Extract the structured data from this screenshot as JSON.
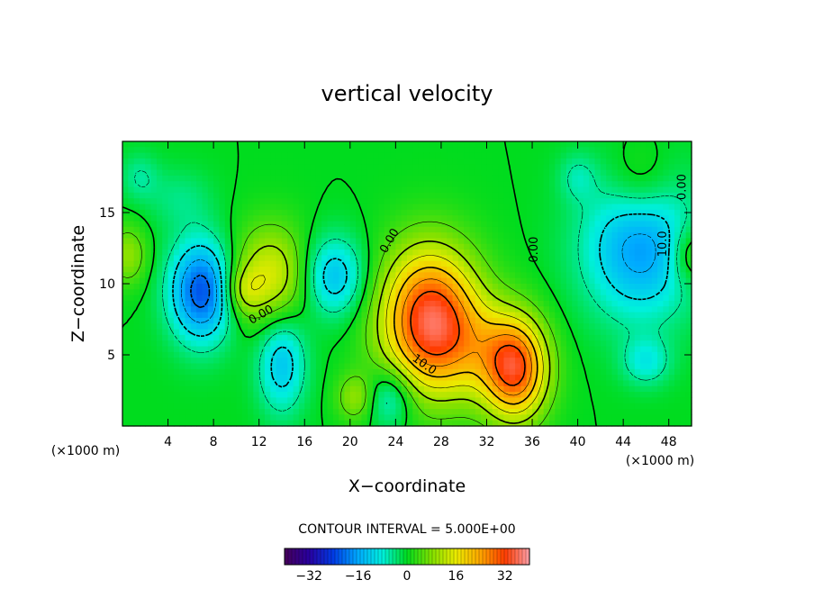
{
  "chart_data": {
    "type": "heatmap",
    "title": "vertical velocity",
    "xlabel": "X−coordinate",
    "ylabel": "Z−coordinate",
    "x_unit_left": "(×1000 m)",
    "x_unit_right": "(×1000 m)",
    "xlim": [
      0,
      50
    ],
    "ylim": [
      0,
      20
    ],
    "x_ticks": [
      4,
      8,
      12,
      16,
      20,
      24,
      28,
      32,
      36,
      40,
      44,
      48
    ],
    "y_ticks": [
      5,
      10,
      15
    ],
    "contour_interval_label": "CONTOUR INTERVAL = 5.000E+00",
    "colorbar": {
      "range": [
        -40,
        40
      ],
      "ticks": [
        -32,
        -16,
        0,
        16,
        32
      ],
      "tick_labels": [
        "−32",
        "−16",
        "0",
        "16",
        "32"
      ]
    },
    "contour_labels": [
      {
        "text": "0.00",
        "x": 23.5,
        "z": 13.0,
        "angle": -60
      },
      {
        "text": "0.00",
        "x": 12.2,
        "z": 7.8,
        "angle": -30
      },
      {
        "text": "10.0",
        "x": 26.5,
        "z": 4.3,
        "angle": 35
      },
      {
        "text": "0.00",
        "x": 36.2,
        "z": 12.4,
        "angle": -90
      },
      {
        "text": "10.0",
        "x": 47.5,
        "z": 12.8,
        "angle": -90
      },
      {
        "text": "0.00",
        "x": 49.2,
        "z": 16.8,
        "angle": -90
      }
    ],
    "field_features": [
      {
        "x": 27.0,
        "z": 7.5,
        "sx": 3.0,
        "sz": 3.5,
        "amp": 34
      },
      {
        "x": 34.5,
        "z": 4.0,
        "sx": 2.0,
        "sz": 2.5,
        "amp": 30
      },
      {
        "x": 31.0,
        "z": 5.5,
        "sx": 3.0,
        "sz": 2.5,
        "amp": 8
      },
      {
        "x": 13.0,
        "z": 10.5,
        "sx": 2.5,
        "sz": 2.5,
        "amp": 15
      },
      {
        "x": 10.5,
        "z": 9.5,
        "sx": 1.2,
        "sz": 1.2,
        "amp": 8
      },
      {
        "x": 7.0,
        "z": 9.5,
        "sx": 2.0,
        "sz": 2.5,
        "amp": -23
      },
      {
        "x": 18.5,
        "z": 10.5,
        "sx": 2.0,
        "sz": 2.0,
        "amp": -14
      },
      {
        "x": 14.0,
        "z": 4.5,
        "sx": 1.5,
        "sz": 2.5,
        "amp": -13
      },
      {
        "x": 23.5,
        "z": 2.0,
        "sx": 1.5,
        "sz": 1.5,
        "amp": -10
      },
      {
        "x": 20.5,
        "z": 2.0,
        "sx": 1.2,
        "sz": 1.2,
        "amp": 9
      },
      {
        "x": 45.5,
        "z": 12.5,
        "sx": 3.5,
        "sz": 3.5,
        "amp": -17
      },
      {
        "x": 46.0,
        "z": 4.5,
        "sx": 1.5,
        "sz": 1.2,
        "amp": -8
      },
      {
        "x": 45.5,
        "z": 17.0,
        "sx": 2.0,
        "sz": 2.0,
        "amp": 6
      },
      {
        "x": 0.5,
        "z": 12.0,
        "sx": 1.2,
        "sz": 1.5,
        "amp": 9
      },
      {
        "x": 49.8,
        "z": 12.0,
        "sx": 1.2,
        "sz": 1.5,
        "amp": 9
      },
      {
        "x": 1.5,
        "z": 17.5,
        "sx": 1.2,
        "sz": 1.2,
        "amp": -5
      },
      {
        "x": 40.0,
        "z": 17.5,
        "sx": 1.2,
        "sz": 1.2,
        "amp": -5
      },
      {
        "x": 5.0,
        "z": 16.0,
        "sx": 2.0,
        "sz": 1.5,
        "amp": -4
      }
    ]
  }
}
